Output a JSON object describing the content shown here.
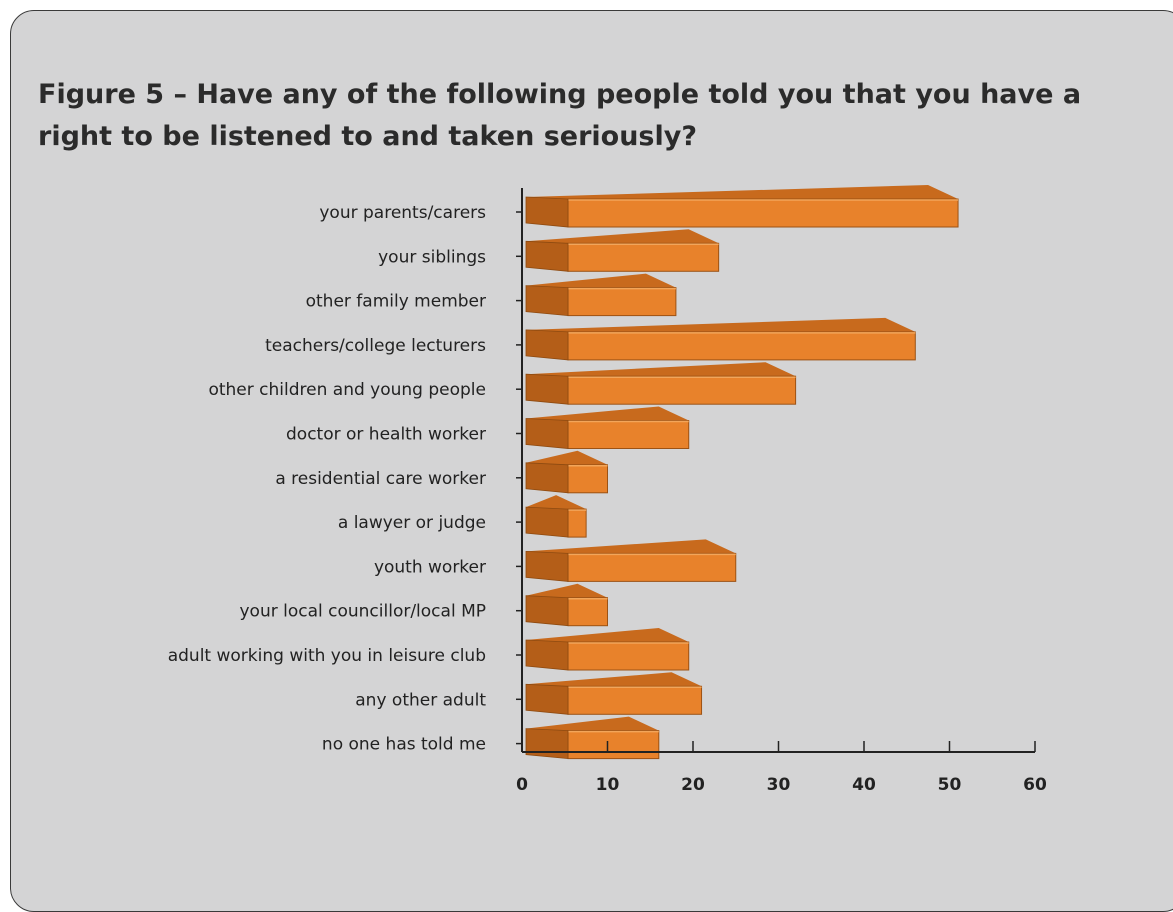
{
  "title": "Figure 5 – Have any of the following people told you that you have a right to be listened to and taken seriously?",
  "colors": {
    "panel_background": "#d4d4d5",
    "bar_front": "#e8822b",
    "bar_top": "#c86a1d",
    "bar_side": "#b45e18",
    "axis": "#222222"
  },
  "chart_data": {
    "type": "bar",
    "orientation": "horizontal",
    "style": "3d",
    "title": "Figure 5 – Have any of the following people told you that you have a right to be listened to and taken seriously?",
    "xlabel": "",
    "ylabel": "",
    "xlim": [
      0,
      60
    ],
    "xticks": [
      0,
      10,
      20,
      30,
      40,
      50,
      60
    ],
    "grid": false,
    "legend": "none",
    "categories": [
      "your parents/carers",
      "your siblings",
      "other family member",
      "teachers/college lecturers",
      "other children and young people",
      "doctor or health worker",
      "a residential care worker",
      "a lawyer or judge",
      "youth worker",
      "your local councillor/local MP",
      "adult working with you in leisure club",
      "any other adult",
      "no one has told me"
    ],
    "values": [
      51,
      23,
      18,
      46,
      32,
      19.5,
      10,
      7.5,
      25,
      10,
      19.5,
      21,
      16
    ]
  }
}
